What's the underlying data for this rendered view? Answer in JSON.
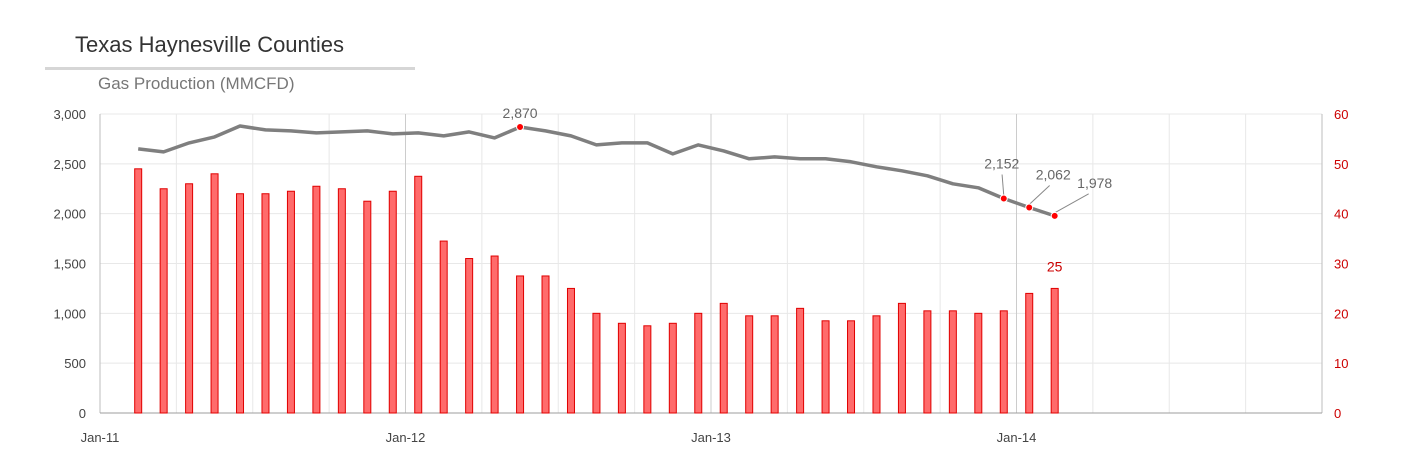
{
  "header": {
    "title": "Texas Haynesville Counties",
    "subtitle": "Gas Production (MMCFD)"
  },
  "colors": {
    "line": "#7f7f7f",
    "bar_fill": "#ff6b6b",
    "bar_stroke": "#e00000",
    "marker": "#ff0000",
    "right_axis": "#cc0000",
    "grid": "#e8e8e8",
    "year_grid": "#cccccc"
  },
  "chart_data": {
    "type": "bar",
    "start": "2011-01",
    "x_ticks": [
      "Jan-11",
      "Jan-12",
      "Jan-13",
      "Jan-14"
    ],
    "y_left": {
      "min": 0,
      "max": 3000,
      "ticks": [
        "0",
        "500",
        "1,000",
        "1,500",
        "2,000",
        "2,500",
        "3,000"
      ]
    },
    "y_right": {
      "min": 0,
      "max": 60,
      "ticks": [
        "0",
        "10",
        "20",
        "30",
        "40",
        "50",
        "60"
      ]
    },
    "series": [
      {
        "type": "line",
        "axis": "left",
        "values": [
          2650,
          2620,
          2710,
          2770,
          2880,
          2840,
          2830,
          2810,
          2820,
          2830,
          2800,
          2810,
          2780,
          2820,
          2760,
          2870,
          2830,
          2780,
          2690,
          2710,
          2710,
          2600,
          2690,
          2630,
          2550,
          2570,
          2550,
          2550,
          2520,
          2470,
          2430,
          2380,
          2300,
          2260,
          2152,
          2062,
          1978
        ]
      },
      {
        "type": "bar",
        "axis": "right",
        "values": [
          49,
          45,
          46,
          48,
          44,
          44,
          44.5,
          45.5,
          45,
          42.5,
          44.5,
          47.5,
          34.5,
          31,
          31.5,
          27.5,
          27.5,
          25,
          20,
          18,
          17.5,
          18,
          20,
          22,
          19.5,
          19.5,
          21,
          18.5,
          18.5,
          19.5,
          22,
          20.5,
          20.5,
          20,
          20.5,
          24,
          25
        ]
      }
    ],
    "annotations": [
      {
        "series": 0,
        "index": 15,
        "text": "2,870"
      },
      {
        "series": 0,
        "index": 34,
        "text": "2,152"
      },
      {
        "series": 0,
        "index": 35,
        "text": "2,062"
      },
      {
        "series": 0,
        "index": 36,
        "text": "1,978"
      },
      {
        "series": 1,
        "index": 36,
        "text": "25"
      }
    ],
    "grid": true,
    "legend": "none"
  }
}
